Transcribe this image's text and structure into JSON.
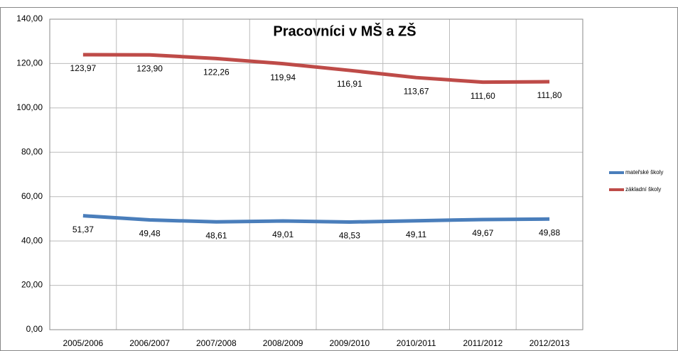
{
  "chart_data": {
    "type": "line",
    "title": "Pracovníci v MŠ a ZŠ",
    "categories": [
      "2005/2006",
      "2006/2007",
      "2007/2008",
      "2008/2009",
      "2009/2010",
      "2010/2011",
      "2011/2012",
      "2012/2013"
    ],
    "series": [
      {
        "name": "mateřské školy",
        "color": "#4a7ebb",
        "values": [
          51.37,
          49.48,
          48.61,
          49.01,
          48.53,
          49.11,
          49.67,
          49.88
        ],
        "value_labels": [
          "51,37",
          "49,48",
          "48,61",
          "49,01",
          "48,53",
          "49,11",
          "49,67",
          "49,88"
        ]
      },
      {
        "name": "základní školy",
        "color": "#be4b48",
        "values": [
          123.97,
          123.9,
          122.26,
          119.94,
          116.91,
          113.67,
          111.6,
          111.8
        ],
        "value_labels": [
          "123,97",
          "123,90",
          "122,26",
          "119,94",
          "116,91",
          "113,67",
          "111,60",
          "111,80"
        ]
      }
    ],
    "ylim": [
      0,
      140
    ],
    "yticks": [
      {
        "value": 0,
        "label": "0,00"
      },
      {
        "value": 20,
        "label": "20,00"
      },
      {
        "value": 40,
        "label": "40,00"
      },
      {
        "value": 60,
        "label": "60,00"
      },
      {
        "value": 80,
        "label": "80,00"
      },
      {
        "value": 100,
        "label": "100,00"
      },
      {
        "value": 120,
        "label": "120,00"
      },
      {
        "value": 140,
        "label": "140,00"
      }
    ],
    "grid": true,
    "legend": "right"
  }
}
